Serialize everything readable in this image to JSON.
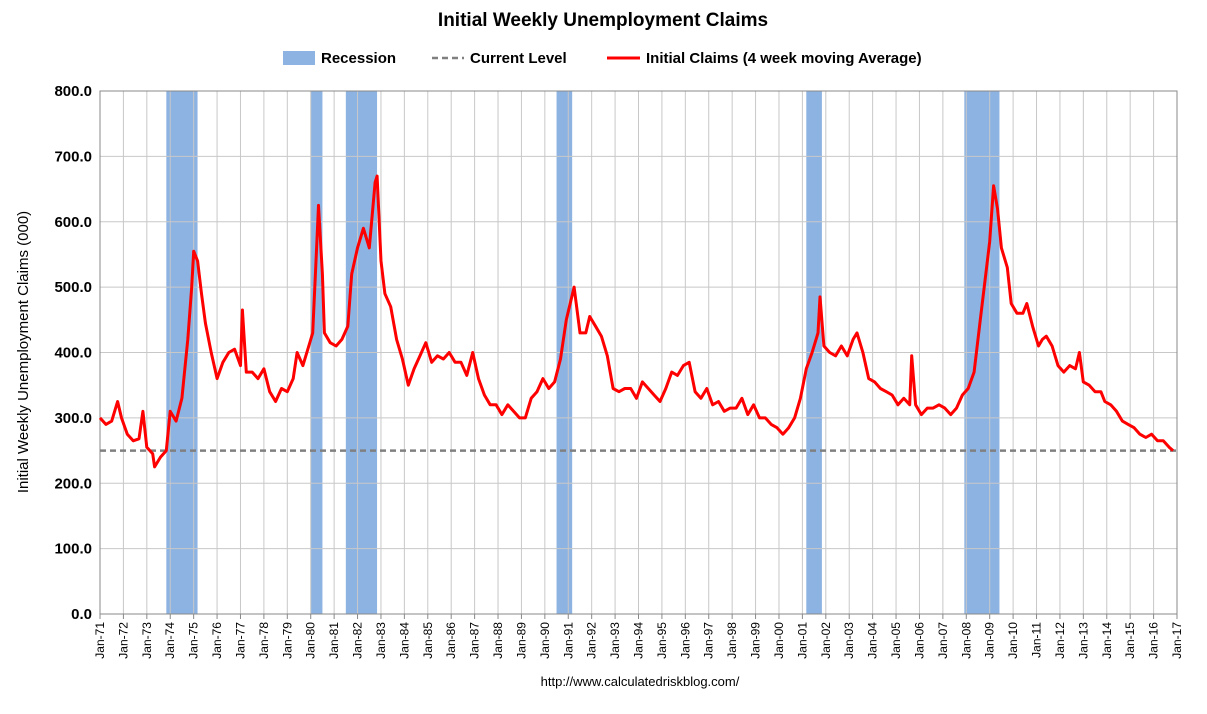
{
  "chart_data": {
    "type": "line",
    "title": "Initial Weekly Unemployment Claims",
    "y_label": "Initial Weekly Unemployment Claims (000)",
    "source": "http://www.calculatedriskblog.com/",
    "grid": true,
    "legend": "top",
    "recession": {
      "name": "Recession",
      "color": "#8db3e2",
      "periods": [
        [
          "1973-11",
          "1975-03"
        ],
        [
          "1980-01",
          "1980-07"
        ],
        [
          "1981-07",
          "1982-11"
        ],
        [
          "1990-07",
          "1991-03"
        ],
        [
          "2001-03",
          "2001-11"
        ],
        [
          "2007-12",
          "2009-06"
        ]
      ]
    },
    "current_level": {
      "name": "Current Level",
      "color": "#808080",
      "value": 250
    },
    "xlim": [
      "1971-01",
      "2017-01"
    ],
    "xticks": [
      {
        "value": "1971-01",
        "label": "Jan-71"
      },
      {
        "value": "1972-01",
        "label": "Jan-72"
      },
      {
        "value": "1973-01",
        "label": "Jan-73"
      },
      {
        "value": "1974-01",
        "label": "Jan-74"
      },
      {
        "value": "1975-01",
        "label": "Jan-75"
      },
      {
        "value": "1976-01",
        "label": "Jan-76"
      },
      {
        "value": "1977-01",
        "label": "Jan-77"
      },
      {
        "value": "1978-01",
        "label": "Jan-78"
      },
      {
        "value": "1979-01",
        "label": "Jan-79"
      },
      {
        "value": "1980-01",
        "label": "Jan-80"
      },
      {
        "value": "1981-01",
        "label": "Jan-81"
      },
      {
        "value": "1982-01",
        "label": "Jan-82"
      },
      {
        "value": "1983-01",
        "label": "Jan-83"
      },
      {
        "value": "1984-01",
        "label": "Jan-84"
      },
      {
        "value": "1985-01",
        "label": "Jan-85"
      },
      {
        "value": "1986-01",
        "label": "Jan-86"
      },
      {
        "value": "1987-01",
        "label": "Jan-87"
      },
      {
        "value": "1988-01",
        "label": "Jan-88"
      },
      {
        "value": "1989-01",
        "label": "Jan-89"
      },
      {
        "value": "1990-01",
        "label": "Jan-90"
      },
      {
        "value": "1991-01",
        "label": "Jan-91"
      },
      {
        "value": "1992-01",
        "label": "Jan-92"
      },
      {
        "value": "1993-01",
        "label": "Jan-93"
      },
      {
        "value": "1994-01",
        "label": "Jan-94"
      },
      {
        "value": "1995-01",
        "label": "Jan-95"
      },
      {
        "value": "1996-01",
        "label": "Jan-96"
      },
      {
        "value": "1997-01",
        "label": "Jan-97"
      },
      {
        "value": "1998-01",
        "label": "Jan-98"
      },
      {
        "value": "1999-01",
        "label": "Jan-99"
      },
      {
        "value": "2000-01",
        "label": "Jan-00"
      },
      {
        "value": "2001-01",
        "label": "Jan-01"
      },
      {
        "value": "2002-01",
        "label": "Jan-02"
      },
      {
        "value": "2003-01",
        "label": "Jan-03"
      },
      {
        "value": "2004-01",
        "label": "Jan-04"
      },
      {
        "value": "2005-01",
        "label": "Jan-05"
      },
      {
        "value": "2006-01",
        "label": "Jan-06"
      },
      {
        "value": "2007-01",
        "label": "Jan-07"
      },
      {
        "value": "2008-01",
        "label": "Jan-08"
      },
      {
        "value": "2009-01",
        "label": "Jan-09"
      },
      {
        "value": "2010-01",
        "label": "Jan-10"
      },
      {
        "value": "2011-01",
        "label": "Jan-11"
      },
      {
        "value": "2012-01",
        "label": "Jan-12"
      },
      {
        "value": "2013-01",
        "label": "Jan-13"
      },
      {
        "value": "2014-01",
        "label": "Jan-14"
      },
      {
        "value": "2015-01",
        "label": "Jan-15"
      },
      {
        "value": "2016-01",
        "label": "Jan-16"
      },
      {
        "value": "2017-01",
        "label": "Jan-17"
      }
    ],
    "ylim": [
      0,
      800
    ],
    "yticks": [
      {
        "value": 0,
        "label": "0.0"
      },
      {
        "value": 100,
        "label": "100.0"
      },
      {
        "value": 200,
        "label": "200.0"
      },
      {
        "value": 300,
        "label": "300.0"
      },
      {
        "value": 400,
        "label": "400.0"
      },
      {
        "value": 500,
        "label": "500.0"
      },
      {
        "value": 600,
        "label": "600.0"
      },
      {
        "value": 700,
        "label": "700.0"
      },
      {
        "value": 800,
        "label": "800.0"
      }
    ],
    "x": [
      "1971-01",
      "1971-04",
      "1971-07",
      "1971-10",
      "1971-12",
      "1972-03",
      "1972-06",
      "1972-09",
      "1972-11",
      "1973-01",
      "1973-04",
      "1973-05",
      "1973-08",
      "1973-11",
      "1974-01",
      "1974-04",
      "1974-07",
      "1974-10",
      "1974-12",
      "1975-01",
      "1975-03",
      "1975-05",
      "1975-07",
      "1975-10",
      "1976-01",
      "1976-04",
      "1976-07",
      "1976-10",
      "1977-01",
      "1977-02",
      "1977-04",
      "1977-07",
      "1977-10",
      "1978-01",
      "1978-04",
      "1978-07",
      "1978-10",
      "1979-01",
      "1979-04",
      "1979-06",
      "1979-09",
      "1979-12",
      "1980-02",
      "1980-04",
      "1980-05",
      "1980-07",
      "1980-08",
      "1980-11",
      "1981-02",
      "1981-05",
      "1981-08",
      "1981-10",
      "1982-01",
      "1982-04",
      "1982-07",
      "1982-10",
      "1982-11",
      "1983-01",
      "1983-03",
      "1983-06",
      "1983-09",
      "1983-12",
      "1984-03",
      "1984-06",
      "1984-09",
      "1984-12",
      "1985-03",
      "1985-06",
      "1985-09",
      "1985-12",
      "1986-03",
      "1986-06",
      "1986-09",
      "1986-12",
      "1987-03",
      "1987-06",
      "1987-09",
      "1987-12",
      "1988-03",
      "1988-06",
      "1988-09",
      "1988-12",
      "1989-03",
      "1989-06",
      "1989-09",
      "1989-12",
      "1990-03",
      "1990-06",
      "1990-09",
      "1990-12",
      "1991-02",
      "1991-04",
      "1991-07",
      "1991-10",
      "1991-12",
      "1992-03",
      "1992-06",
      "1992-09",
      "1992-12",
      "1993-03",
      "1993-06",
      "1993-09",
      "1993-12",
      "1994-03",
      "1994-06",
      "1994-09",
      "1994-12",
      "1995-03",
      "1995-06",
      "1995-09",
      "1995-12",
      "1996-03",
      "1996-06",
      "1996-09",
      "1996-12",
      "1997-03",
      "1997-06",
      "1997-09",
      "1997-12",
      "1998-03",
      "1998-06",
      "1998-09",
      "1998-12",
      "1999-03",
      "1999-06",
      "1999-09",
      "1999-12",
      "2000-03",
      "2000-06",
      "2000-09",
      "2000-12",
      "2001-03",
      "2001-06",
      "2001-09",
      "2001-10",
      "2001-12",
      "2002-03",
      "2002-06",
      "2002-09",
      "2002-12",
      "2003-03",
      "2003-05",
      "2003-08",
      "2003-11",
      "2004-02",
      "2004-05",
      "2004-08",
      "2004-11",
      "2005-02",
      "2005-05",
      "2005-08",
      "2005-09",
      "2005-11",
      "2006-02",
      "2006-05",
      "2006-08",
      "2006-11",
      "2007-02",
      "2007-05",
      "2007-08",
      "2007-11",
      "2008-02",
      "2008-05",
      "2008-08",
      "2008-11",
      "2009-01",
      "2009-03",
      "2009-05",
      "2009-07",
      "2009-10",
      "2009-12",
      "2010-03",
      "2010-06",
      "2010-08",
      "2010-11",
      "2011-02",
      "2011-04",
      "2011-06",
      "2011-09",
      "2011-12",
      "2012-03",
      "2012-06",
      "2012-09",
      "2012-11",
      "2013-01",
      "2013-04",
      "2013-07",
      "2013-10",
      "2013-12",
      "2014-03",
      "2014-06",
      "2014-09",
      "2014-12",
      "2015-03",
      "2015-06",
      "2015-09",
      "2015-12",
      "2016-03",
      "2016-06",
      "2016-09",
      "2016-11"
    ],
    "series": [
      {
        "name": "Initial Claims (4 week moving Average)",
        "color": "#ff0000",
        "values": [
          300,
          290,
          295,
          325,
          300,
          275,
          265,
          268,
          310,
          255,
          245,
          225,
          240,
          250,
          310,
          295,
          330,
          420,
          500,
          555,
          540,
          490,
          445,
          400,
          360,
          385,
          400,
          405,
          380,
          465,
          370,
          370,
          360,
          375,
          340,
          325,
          345,
          340,
          360,
          400,
          380,
          410,
          430,
          560,
          625,
          520,
          430,
          415,
          410,
          420,
          440,
          520,
          560,
          590,
          560,
          660,
          670,
          540,
          490,
          470,
          420,
          390,
          350,
          375,
          395,
          415,
          385,
          395,
          390,
          400,
          385,
          385,
          365,
          400,
          360,
          335,
          320,
          320,
          305,
          320,
          310,
          300,
          300,
          330,
          340,
          360,
          345,
          355,
          390,
          450,
          475,
          500,
          430,
          430,
          455,
          440,
          425,
          395,
          345,
          340,
          345,
          345,
          330,
          355,
          345,
          335,
          325,
          345,
          370,
          365,
          380,
          385,
          340,
          330,
          345,
          320,
          325,
          310,
          315,
          315,
          330,
          305,
          320,
          300,
          300,
          290,
          285,
          275,
          285,
          300,
          330,
          375,
          400,
          430,
          485,
          410,
          400,
          395,
          410,
          395,
          420,
          430,
          400,
          360,
          355,
          345,
          340,
          335,
          320,
          330,
          320,
          395,
          320,
          305,
          315,
          315,
          320,
          315,
          305,
          315,
          335,
          345,
          370,
          445,
          520,
          570,
          655,
          620,
          560,
          530,
          475,
          460,
          460,
          475,
          440,
          410,
          420,
          425,
          410,
          380,
          370,
          380,
          375,
          400,
          355,
          350,
          340,
          340,
          325,
          320,
          310,
          295,
          290,
          285,
          275,
          270,
          275,
          265,
          265,
          255,
          250
        ]
      }
    ]
  }
}
